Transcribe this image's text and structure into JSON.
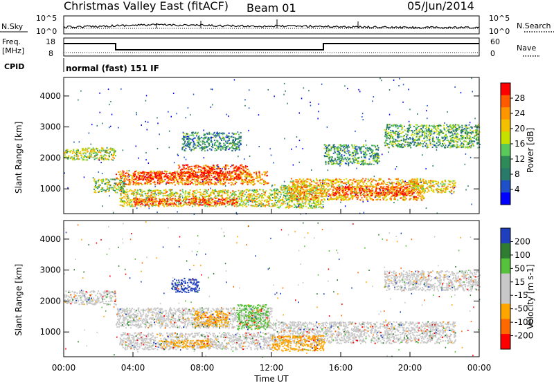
{
  "header": {
    "station": "Christmas Valley East (fitACF)",
    "beam": "Beam 01",
    "date": "05/Jun/2014"
  },
  "noise_panel": {
    "left_label": "N.Sky",
    "right_label": "N.Search",
    "left_ticks": [
      "10^5",
      "10^0"
    ],
    "right_ticks": [
      "10^5",
      "10^0"
    ]
  },
  "freq_panel": {
    "left_label_line1": "Freq.",
    "left_label_line2": "[MHz]",
    "right_label": "Nave",
    "left_ticks": [
      "18",
      "8"
    ],
    "right_ticks": [
      "60",
      "0"
    ],
    "steps": [
      {
        "from_h": 0,
        "to_h": 3,
        "freq": 15
      },
      {
        "from_h": 3,
        "to_h": 15,
        "freq": 10.5
      },
      {
        "from_h": 15,
        "to_h": 24,
        "freq": 15
      }
    ],
    "nave_level": 12
  },
  "cpid": {
    "label": "CPID",
    "mode": "normal (fast) 151 IF"
  },
  "chart_data": [
    {
      "type": "heatmap",
      "name": "power",
      "ylabel": "Slant Range [km]",
      "xlabel": "Time UT",
      "xlim": [
        0,
        24
      ],
      "ylim": [
        200,
        4600
      ],
      "y_ticks": [
        "4000",
        "3000",
        "2000",
        "1000"
      ],
      "y_tick_values": [
        4000,
        3000,
        2000,
        1000
      ],
      "colorbar": {
        "label": "Power [dB]",
        "ticks": [
          "28",
          "24",
          "20",
          "16",
          "12",
          "8",
          "4"
        ],
        "colors": [
          "#ff0000",
          "#ff5a00",
          "#ff9600",
          "#f2c000",
          "#c8e000",
          "#5bc85b",
          "#2e8b57",
          "#2a7a6a",
          "#1e50c8",
          "#0000ff"
        ]
      },
      "echo_regions": [
        {
          "t0": 0.0,
          "t1": 3.0,
          "r0": 1950,
          "r1": 2350,
          "level": 0.55
        },
        {
          "t0": 1.7,
          "t1": 3.5,
          "r0": 900,
          "r1": 1350,
          "level": 0.45
        },
        {
          "t0": 3.0,
          "t1": 11.8,
          "r0": 1150,
          "r1": 1600,
          "level": 0.75
        },
        {
          "t0": 4.0,
          "t1": 10.3,
          "r0": 1300,
          "r1": 1550,
          "level": 0.95
        },
        {
          "t0": 6.5,
          "t1": 10.6,
          "r0": 1500,
          "r1": 1800,
          "level": 0.9
        },
        {
          "t0": 3.2,
          "t1": 12.0,
          "r0": 450,
          "r1": 1000,
          "level": 0.6
        },
        {
          "t0": 4.0,
          "t1": 10.0,
          "r0": 500,
          "r1": 720,
          "level": 0.9
        },
        {
          "t0": 6.8,
          "t1": 10.2,
          "r0": 2250,
          "r1": 2850,
          "level": 0.3
        },
        {
          "t0": 12.0,
          "t1": 15.0,
          "r0": 400,
          "r1": 1150,
          "level": 0.55
        },
        {
          "t0": 13.0,
          "t1": 20.8,
          "r0": 650,
          "r1": 1350,
          "level": 0.7
        },
        {
          "t0": 15.5,
          "t1": 20.2,
          "r0": 800,
          "r1": 1100,
          "level": 0.9
        },
        {
          "t0": 20.0,
          "t1": 22.6,
          "r0": 900,
          "r1": 1300,
          "level": 0.65
        },
        {
          "t0": 15.0,
          "t1": 18.2,
          "r0": 1800,
          "r1": 2450,
          "level": 0.35
        },
        {
          "t0": 18.5,
          "t1": 24.0,
          "r0": 2350,
          "r1": 3100,
          "level": 0.4
        }
      ]
    },
    {
      "type": "heatmap",
      "name": "velocity",
      "ylabel": "Slant Range [km]",
      "xlabel": "Time UT",
      "xlim": [
        0,
        24
      ],
      "ylim": [
        200,
        4600
      ],
      "y_ticks": [
        "4000",
        "3000",
        "2000",
        "1000"
      ],
      "y_tick_values": [
        4000,
        3000,
        2000,
        1000
      ],
      "x_ticks": [
        "00:00",
        "04:00",
        "08:00",
        "12:00",
        "16:00",
        "20:00",
        "00:00"
      ],
      "x_tick_values": [
        0,
        4,
        8,
        12,
        16,
        20,
        24
      ],
      "colorbar": {
        "label": "Velocity [m s-1]",
        "ticks": [
          "200",
          "100",
          "50",
          "15",
          "-15",
          "-50",
          "-100",
          "-200"
        ],
        "colors": [
          "#1f3fbf",
          "#2e7d32",
          "#56c23c",
          "#c8c8c8",
          "#c8c8c8",
          "#ffa500",
          "#ff6a00",
          "#ff0000"
        ]
      },
      "echo_regions": [
        {
          "t0": 0.0,
          "t1": 3.0,
          "r0": 1900,
          "r1": 2350,
          "color": "#c8c8c8"
        },
        {
          "t0": 3.0,
          "t1": 12.0,
          "r0": 1150,
          "r1": 1800,
          "color": "#c8c8c8"
        },
        {
          "t0": 3.2,
          "t1": 12.0,
          "r0": 450,
          "r1": 1000,
          "color": "#c8c8c8"
        },
        {
          "t0": 12.0,
          "t1": 22.6,
          "r0": 650,
          "r1": 1350,
          "color": "#c8c8c8"
        },
        {
          "t0": 18.5,
          "t1": 24.0,
          "r0": 2350,
          "r1": 3000,
          "color": "#c8c8c8"
        },
        {
          "t0": 6.2,
          "t1": 7.8,
          "r0": 2300,
          "r1": 2750,
          "color": "#1f3fbf"
        },
        {
          "t0": 10.0,
          "t1": 11.8,
          "r0": 1100,
          "r1": 1900,
          "color": "#56c23c"
        },
        {
          "t0": 7.5,
          "t1": 9.5,
          "r0": 1200,
          "r1": 1700,
          "color": "#ffa500"
        },
        {
          "t0": 5.5,
          "t1": 8.5,
          "r0": 500,
          "r1": 750,
          "color": "#ffa500"
        },
        {
          "t0": 12.0,
          "t1": 15.0,
          "r0": 400,
          "r1": 900,
          "color": "#ffa500"
        }
      ]
    }
  ]
}
